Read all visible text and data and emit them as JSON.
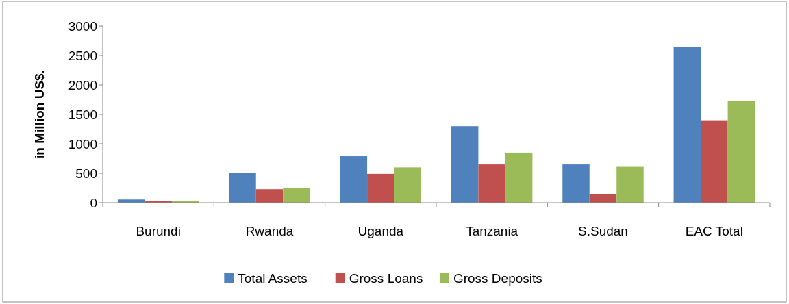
{
  "chart_data": {
    "type": "bar",
    "ylabel": "in Million US$.",
    "categories": [
      "Burundi",
      "Rwanda",
      "Uganda",
      "Tanzania",
      "S.Sudan",
      "EAC Total"
    ],
    "series": [
      {
        "name": "Total Assets",
        "color": "#4f81bd",
        "values": [
          55,
          500,
          790,
          1300,
          650,
          2650
        ]
      },
      {
        "name": "Gross Loans",
        "color": "#c0504d",
        "values": [
          35,
          230,
          490,
          650,
          150,
          1400
        ]
      },
      {
        "name": "Gross Deposits",
        "color": "#9bbb59",
        "values": [
          35,
          250,
          600,
          850,
          610,
          1730
        ]
      }
    ],
    "ylim": [
      0,
      3000
    ],
    "yticks": [
      0,
      500,
      1000,
      1500,
      2000,
      2500,
      3000
    ],
    "grid": false,
    "legend": "bottom"
  }
}
